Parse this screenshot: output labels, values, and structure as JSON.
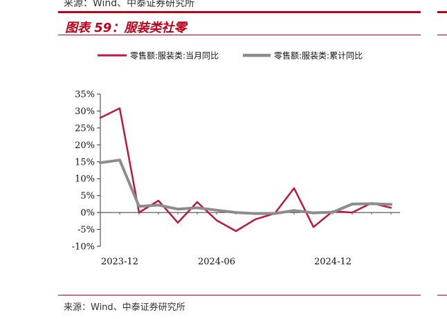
{
  "header": {
    "source_top": "来源：Wind、中泰证券研究所",
    "figure_title": "图表 59：服装类社零"
  },
  "footer": {
    "source": "来源：Wind、中泰证券研究所"
  },
  "colors": {
    "accent": "#c00018",
    "series_monthly": "#c0143c",
    "series_cumulative": "#8c8c8c"
  },
  "chart_data": {
    "type": "line",
    "title": "",
    "xlabel": "",
    "ylabel": "",
    "ylim": [
      -10,
      35
    ],
    "yticks": [
      -10,
      -5,
      0,
      5,
      10,
      15,
      20,
      25,
      30,
      35
    ],
    "ytick_labels": [
      "-10%",
      "-5%",
      "0%",
      "5%",
      "10%",
      "15%",
      "20%",
      "25%",
      "30%",
      "35%"
    ],
    "x": [
      "2023-11",
      "2023-12",
      "2024-02",
      "2024-03",
      "2024-04",
      "2024-05",
      "2024-06",
      "2024-07",
      "2024-08",
      "2024-09",
      "2024-10",
      "2024-11",
      "2024-12",
      "2025-02",
      "2025-03",
      "2025-04"
    ],
    "xtick_labels": [
      {
        "label": "2023-12",
        "at": "2023-12"
      },
      {
        "label": "2024-06",
        "at": "2024-06"
      },
      {
        "label": "2024-12",
        "at": "2024-12"
      }
    ],
    "legend_position": "top",
    "grid": false,
    "series": [
      {
        "name": "零售额:服装类:当月同比",
        "values": [
          28.0,
          30.8,
          0.0,
          3.5,
          -3.0,
          3.1,
          -2.3,
          -5.5,
          -2.0,
          -0.3,
          7.2,
          -4.3,
          0.4,
          0.0,
          2.8,
          1.4
        ]
      },
      {
        "name": "零售额:服装类:累计同比",
        "values": [
          14.7,
          15.5,
          1.8,
          2.2,
          1.0,
          1.4,
          0.7,
          0.0,
          -0.3,
          -0.3,
          0.6,
          -0.1,
          0.1,
          2.5,
          2.6,
          2.4
        ]
      }
    ]
  }
}
